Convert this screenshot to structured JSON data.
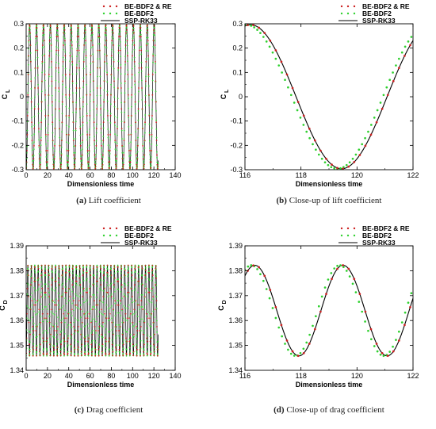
{
  "figure": {
    "legend_labels": [
      "BE-BDF2 & RE",
      "BE-BDF2",
      "SSP-RK33"
    ],
    "colors": {
      "be_bdf2_re": "#cc1f1f",
      "be_bdf2": "#2fd12f",
      "ssp_rk33": "#000000"
    }
  },
  "chart_data": [
    {
      "id": "a",
      "type": "line",
      "caption_tag": "(a)",
      "caption_text": "Lift coefficient",
      "xlabel": "Dimensionless time",
      "ylabel": "C",
      "ylabel_sub": "L",
      "xlim": [
        0,
        140
      ],
      "ylim": [
        -0.3,
        0.3
      ],
      "xticks": [
        0,
        20,
        40,
        60,
        80,
        100,
        120,
        140
      ],
      "xtick_labels": [
        "0",
        "20",
        "40",
        "60",
        "80",
        "100",
        "120",
        "140"
      ],
      "yticks": [
        -0.3,
        -0.2,
        -0.1,
        0,
        0.1,
        0.2,
        0.3
      ],
      "ytick_labels": [
        "-0.3",
        "-0.2",
        "-0.1",
        "0",
        "0.1",
        "0.2",
        "0.3"
      ],
      "legend_position": "top-right",
      "signal": {
        "t_start": 0,
        "t_end": 124,
        "mean": 0,
        "amplitude": 0.296,
        "period": 6.5,
        "peak_t": 3.25,
        "green_shift": 0
      },
      "series": [
        {
          "name": "BE-BDF2 & RE",
          "style": "dots",
          "color": "#cc1f1f"
        },
        {
          "name": "BE-BDF2",
          "style": "dots",
          "color": "#2fd12f"
        },
        {
          "name": "SSP-RK33",
          "style": "line",
          "color": "#000000"
        }
      ]
    },
    {
      "id": "b",
      "type": "line",
      "caption_tag": "(b)",
      "caption_text": "Close-up of lift coefficient",
      "xlabel": "Dimensionless time",
      "ylabel": "C",
      "ylabel_sub": "L",
      "xlim": [
        116,
        122
      ],
      "ylim": [
        -0.3,
        0.3
      ],
      "xticks": [
        116,
        118,
        120,
        122
      ],
      "xtick_labels": [
        "116",
        "118",
        "120",
        "122"
      ],
      "yticks": [
        -0.3,
        -0.2,
        -0.1,
        0,
        0.1,
        0.2,
        0.3
      ],
      "ytick_labels": [
        "-0.3",
        "-0.2",
        "-0.1",
        "0",
        "0.1",
        "0.2",
        "0.3"
      ],
      "legend_position": "top-right",
      "signal": {
        "t_start": 116,
        "t_end": 122,
        "mean": 0,
        "amplitude": 0.296,
        "period": 6.5,
        "peak_t": 116.2,
        "green_shift": -0.15
      },
      "series": [
        {
          "name": "BE-BDF2 & RE",
          "style": "dots",
          "color": "#cc1f1f"
        },
        {
          "name": "BE-BDF2",
          "style": "dots",
          "color": "#2fd12f"
        },
        {
          "name": "SSP-RK33",
          "style": "line",
          "color": "#000000"
        }
      ]
    },
    {
      "id": "c",
      "type": "line",
      "caption_tag": "(c)",
      "caption_text": "Drag coefficient",
      "xlabel": "Dimensionless time",
      "ylabel": "C",
      "ylabel_sub": "D",
      "xlim": [
        0,
        140
      ],
      "ylim": [
        1.34,
        1.39
      ],
      "xticks": [
        0,
        20,
        40,
        60,
        80,
        100,
        120,
        140
      ],
      "xtick_labels": [
        "0",
        "20",
        "40",
        "60",
        "80",
        "100",
        "120",
        "140"
      ],
      "yticks": [
        1.34,
        1.35,
        1.36,
        1.37,
        1.38,
        1.39
      ],
      "ytick_labels": [
        "1.34",
        "1.35",
        "1.36",
        "1.37",
        "1.38",
        "1.39"
      ],
      "legend_position": "top-right",
      "signal": {
        "t_start": 0,
        "t_end": 124,
        "mean": 1.364,
        "amplitude": 0.0182,
        "period": 3.25,
        "peak_t": 1.6,
        "green_shift": 0
      },
      "series": [
        {
          "name": "BE-BDF2 & RE",
          "style": "dots",
          "color": "#cc1f1f"
        },
        {
          "name": "BE-BDF2",
          "style": "dots",
          "color": "#2fd12f"
        },
        {
          "name": "SSP-RK33",
          "style": "line",
          "color": "#000000"
        }
      ]
    },
    {
      "id": "d",
      "type": "line",
      "caption_tag": "(d)",
      "caption_text": "Close-up of drag coefficient",
      "xlabel": "Dimensionless time",
      "ylabel": "C",
      "ylabel_sub": "D",
      "xlim": [
        116,
        122
      ],
      "ylim": [
        1.34,
        1.39
      ],
      "xticks": [
        116,
        118,
        120,
        122
      ],
      "xtick_labels": [
        "116",
        "118",
        "120",
        "122"
      ],
      "yticks": [
        1.34,
        1.35,
        1.36,
        1.37,
        1.38,
        1.39
      ],
      "ytick_labels": [
        "1.34",
        "1.35",
        "1.36",
        "1.37",
        "1.38",
        "1.39"
      ],
      "legend_position": "top-right",
      "signal": {
        "t_start": 116,
        "t_end": 122,
        "mean": 1.364,
        "amplitude": 0.0182,
        "period": 3.15,
        "peak_t": 116.35,
        "green_shift": -0.12
      },
      "series": [
        {
          "name": "BE-BDF2 & RE",
          "style": "dots",
          "color": "#cc1f1f"
        },
        {
          "name": "BE-BDF2",
          "style": "dots",
          "color": "#2fd12f"
        },
        {
          "name": "SSP-RK33",
          "style": "line",
          "color": "#000000"
        }
      ]
    }
  ]
}
